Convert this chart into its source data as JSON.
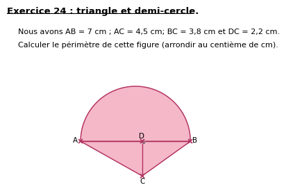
{
  "title": "Exercice 24 : triangle et demi-cercle.",
  "line1": "Nous avons AB = 7 cm ; AC = 4,5 cm; BC = 3,8 cm et DC = 2,2 cm.",
  "line2": "Calculer le périmètre de cette figure (arrondir au centième de cm).",
  "AB": 7.0,
  "AC": 4.5,
  "BC": 3.8,
  "DC": 2.2,
  "fill_color": "#f5b8c8",
  "edge_color": "#b03060",
  "background_color": "#ffffff",
  "title_fontsize": 9.5,
  "text_fontsize": 8.0,
  "label_fontsize": 7.5
}
